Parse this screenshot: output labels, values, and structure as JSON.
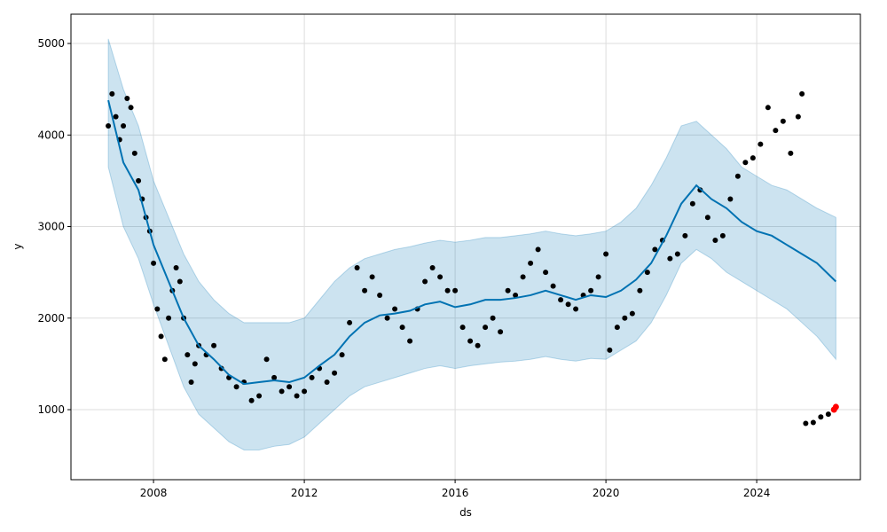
{
  "chart_data": {
    "type": "forecast",
    "xlabel": "ds",
    "ylabel": "y",
    "xlim": [
      2005.81,
      2026.75
    ],
    "ylim": [
      235,
      5320
    ],
    "xticks": [
      2008,
      2012,
      2016,
      2020,
      2024
    ],
    "yticks": [
      1000,
      2000,
      3000,
      4000,
      5000
    ],
    "grid": true,
    "interval": {
      "color": "#0072B2",
      "x": [
        2006.8,
        2007.2,
        2007.6,
        2008.0,
        2008.4,
        2008.8,
        2009.2,
        2009.6,
        2010.0,
        2010.4,
        2010.8,
        2011.2,
        2011.6,
        2012.0,
        2012.4,
        2012.8,
        2013.2,
        2013.6,
        2014.0,
        2014.4,
        2014.8,
        2015.2,
        2015.6,
        2016.0,
        2016.4,
        2016.8,
        2017.2,
        2017.6,
        2018.0,
        2018.4,
        2018.8,
        2019.2,
        2019.6,
        2020.0,
        2020.4,
        2020.8,
        2021.2,
        2021.6,
        2022.0,
        2022.4,
        2022.8,
        2023.2,
        2023.6,
        2024.0,
        2024.4,
        2024.8,
        2025.2,
        2025.6,
        2026.1
      ],
      "upper": [
        5050,
        4500,
        4100,
        3500,
        3100,
        2700,
        2400,
        2200,
        2050,
        1950,
        1950,
        1950,
        1950,
        2000,
        2200,
        2400,
        2550,
        2650,
        2700,
        2750,
        2780,
        2820,
        2850,
        2830,
        2850,
        2880,
        2880,
        2900,
        2920,
        2950,
        2920,
        2900,
        2920,
        2950,
        3050,
        3200,
        3450,
        3750,
        4100,
        4150,
        4000,
        3850,
        3650,
        3550,
        3450,
        3400,
        3300,
        3200,
        3100
      ],
      "lower": [
        3650,
        3000,
        2650,
        2150,
        1700,
        1250,
        950,
        800,
        650,
        560,
        560,
        600,
        620,
        700,
        850,
        1000,
        1150,
        1250,
        1300,
        1350,
        1400,
        1450,
        1480,
        1450,
        1480,
        1500,
        1520,
        1530,
        1550,
        1580,
        1550,
        1530,
        1560,
        1550,
        1650,
        1750,
        1950,
        2250,
        2600,
        2750,
        2650,
        2500,
        2400,
        2300,
        2200,
        2100,
        1950,
        1800,
        1550
      ]
    },
    "forecast": {
      "color": "#0072B2",
      "x": [
        2006.8,
        2007.2,
        2007.6,
        2008.0,
        2008.4,
        2008.8,
        2009.2,
        2009.6,
        2010.0,
        2010.4,
        2010.8,
        2011.2,
        2011.6,
        2012.0,
        2012.4,
        2012.8,
        2013.2,
        2013.6,
        2014.0,
        2014.4,
        2014.8,
        2015.2,
        2015.6,
        2016.0,
        2016.4,
        2016.8,
        2017.2,
        2017.6,
        2018.0,
        2018.4,
        2018.8,
        2019.2,
        2019.6,
        2020.0,
        2020.4,
        2020.8,
        2021.2,
        2021.6,
        2022.0,
        2022.4,
        2022.8,
        2023.2,
        2023.6,
        2024.0,
        2024.4,
        2024.8,
        2025.2,
        2025.6,
        2026.1
      ],
      "values": [
        4380,
        3700,
        3400,
        2800,
        2400,
        2000,
        1700,
        1550,
        1380,
        1280,
        1300,
        1320,
        1300,
        1350,
        1480,
        1600,
        1800,
        1950,
        2030,
        2050,
        2080,
        2150,
        2180,
        2120,
        2150,
        2200,
        2200,
        2220,
        2250,
        2300,
        2250,
        2200,
        2250,
        2230,
        2300,
        2420,
        2600,
        2900,
        3250,
        3450,
        3300,
        3200,
        3050,
        2950,
        2900,
        2800,
        2700,
        2600,
        2400
      ]
    },
    "observed": {
      "color": "#000000",
      "x": [
        2006.8,
        2006.9,
        2007.0,
        2007.1,
        2007.2,
        2007.3,
        2007.4,
        2007.5,
        2007.6,
        2007.7,
        2007.8,
        2007.9,
        2008.0,
        2008.1,
        2008.2,
        2008.3,
        2008.4,
        2008.5,
        2008.6,
        2008.7,
        2008.8,
        2008.9,
        2009.0,
        2009.1,
        2009.2,
        2009.4,
        2009.6,
        2009.8,
        2010.0,
        2010.2,
        2010.4,
        2010.6,
        2010.8,
        2011.0,
        2011.2,
        2011.4,
        2011.6,
        2011.8,
        2012.0,
        2012.2,
        2012.4,
        2012.6,
        2012.8,
        2013.0,
        2013.2,
        2013.4,
        2013.6,
        2013.8,
        2014.0,
        2014.2,
        2014.4,
        2014.6,
        2014.8,
        2015.0,
        2015.2,
        2015.4,
        2015.6,
        2015.8,
        2016.0,
        2016.2,
        2016.4,
        2016.6,
        2016.8,
        2017.0,
        2017.2,
        2017.4,
        2017.6,
        2017.8,
        2018.0,
        2018.2,
        2018.4,
        2018.6,
        2018.8,
        2019.0,
        2019.2,
        2019.4,
        2019.6,
        2019.8,
        2020.0,
        2020.1,
        2020.3,
        2020.5,
        2020.7,
        2020.9,
        2021.1,
        2021.3,
        2021.5,
        2021.7,
        2021.9,
        2022.1,
        2022.3,
        2022.5,
        2022.7,
        2022.9,
        2023.1,
        2023.3,
        2023.5,
        2023.7,
        2023.9,
        2024.1,
        2024.3,
        2024.5,
        2024.7,
        2024.9,
        2025.1,
        2025.2,
        2025.3,
        2025.5,
        2025.7,
        2025.9
      ],
      "values": [
        4100,
        4450,
        4200,
        3950,
        4100,
        4400,
        4300,
        3800,
        3500,
        3300,
        3100,
        2950,
        2600,
        2100,
        1800,
        1550,
        2000,
        2300,
        2550,
        2400,
        2000,
        1600,
        1300,
        1500,
        1700,
        1600,
        1700,
        1450,
        1350,
        1250,
        1300,
        1100,
        1150,
        1550,
        1350,
        1200,
        1250,
        1150,
        1200,
        1350,
        1450,
        1300,
        1400,
        1600,
        1950,
        2550,
        2300,
        2450,
        2250,
        2000,
        2100,
        1900,
        1750,
        2100,
        2400,
        2550,
        2450,
        2300,
        2300,
        1900,
        1750,
        1700,
        1900,
        2000,
        1850,
        2300,
        2250,
        2450,
        2600,
        2750,
        2500,
        2350,
        2200,
        2150,
        2100,
        2250,
        2300,
        2450,
        2700,
        1650,
        1900,
        2000,
        2050,
        2300,
        2500,
        2750,
        2850,
        2650,
        2700,
        2900,
        3250,
        3400,
        3100,
        2850,
        2900,
        3300,
        3550,
        3700,
        3750,
        3900,
        4300,
        4050,
        4150,
        3800,
        4200,
        4450,
        850,
        860,
        920,
        950
      ]
    },
    "recent": {
      "color": "#ff0000",
      "x": [
        2026.05,
        2026.1
      ],
      "values": [
        1000,
        1030
      ]
    }
  }
}
